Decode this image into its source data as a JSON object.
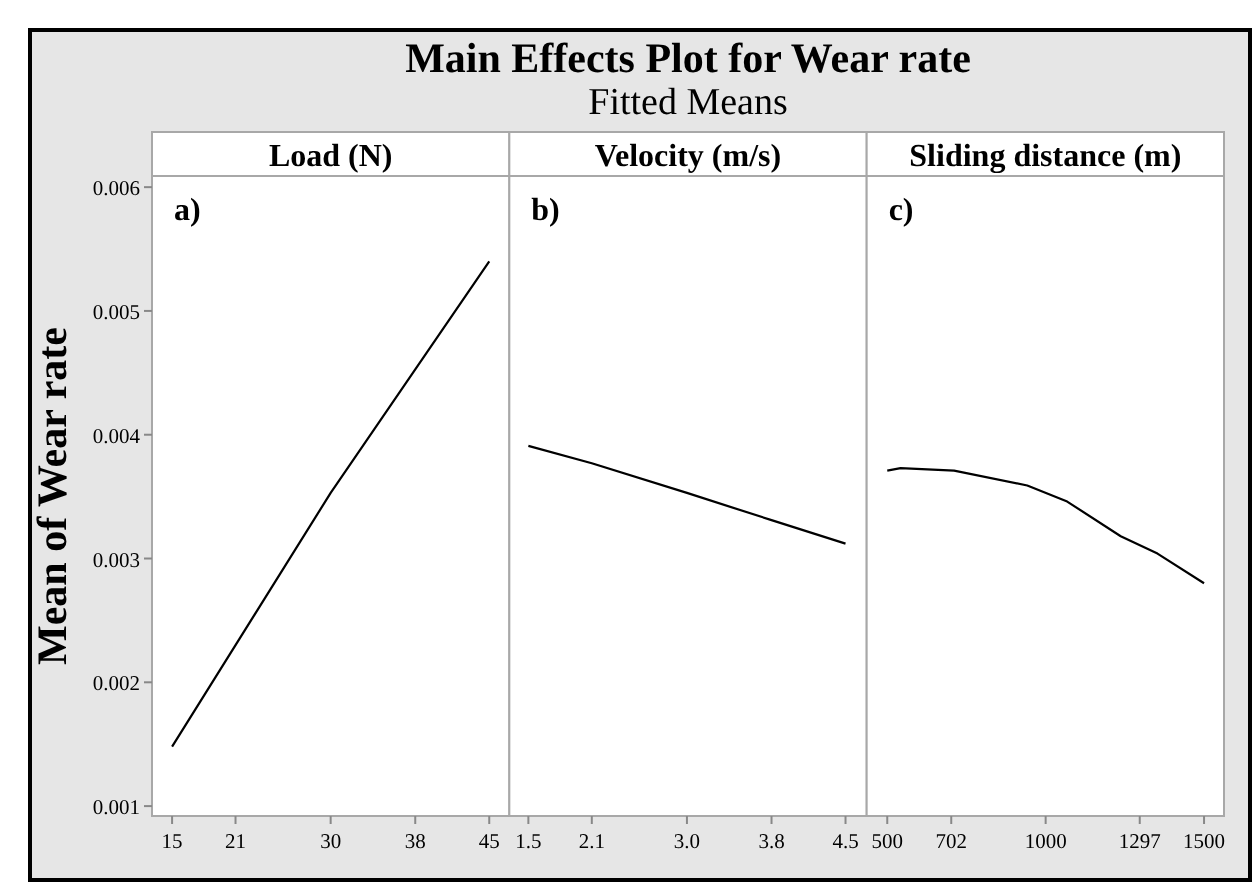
{
  "chart_data": [
    {
      "type": "line",
      "xlabel": "Load (N)",
      "ylabel": "Mean of Wear rate",
      "annotations": [
        "a)"
      ],
      "x": [
        15,
        30,
        45
      ],
      "series": [
        {
          "color": "#000000",
          "values": [
            0.00148,
            0.00353,
            0.0054
          ]
        }
      ],
      "xlim": [
        13.1,
        46.9
      ],
      "xticks": [
        15,
        21,
        30,
        38,
        45
      ],
      "ylim": [
        0.00092,
        0.00609
      ],
      "yticks": [
        0.001,
        0.002,
        0.003,
        0.004,
        0.005,
        0.006
      ],
      "grid": false,
      "marker": "none",
      "line_style": "solid"
    },
    {
      "type": "line",
      "title": "Main Effects Plot for Wear rate",
      "subtitle": "Fitted Means",
      "xlabel": "Velocity (m/s)",
      "annotations": [
        "b)"
      ],
      "x": [
        1.5,
        2.1,
        3.0,
        3.8,
        4.5
      ],
      "series": [
        {
          "color": "#000000",
          "values": [
            0.00391,
            0.00377,
            0.00353,
            0.00331,
            0.00312
          ]
        }
      ],
      "xlim": [
        1.32,
        4.7
      ],
      "xticks": [
        1.5,
        2.1,
        {
          "value": 3,
          "label": "3.0"
        },
        3.8,
        4.5
      ],
      "ylim": [
        0.00092,
        0.00609
      ],
      "tick_labels": "x",
      "grid": false,
      "marker": "none",
      "line_style": "solid"
    },
    {
      "type": "line",
      "xlabel": "Sliding distance (m)",
      "annotations": [
        "c)"
      ],
      "x": [
        500,
        542,
        711,
        942,
        1068,
        1237,
        1353,
        1500
      ],
      "series": [
        {
          "color": "#000000",
          "values": [
            0.00371,
            0.00373,
            0.00371,
            0.00359,
            0.00346,
            0.00318,
            0.00304,
            0.0028
          ]
        }
      ],
      "xlim": [
        435,
        1563
      ],
      "xticks": [
        500,
        702,
        1000,
        1297,
        1500
      ],
      "ylim": [
        0.00092,
        0.00609
      ],
      "tick_labels": "x",
      "grid": false,
      "marker": "none",
      "line_style": "solid"
    }
  ]
}
